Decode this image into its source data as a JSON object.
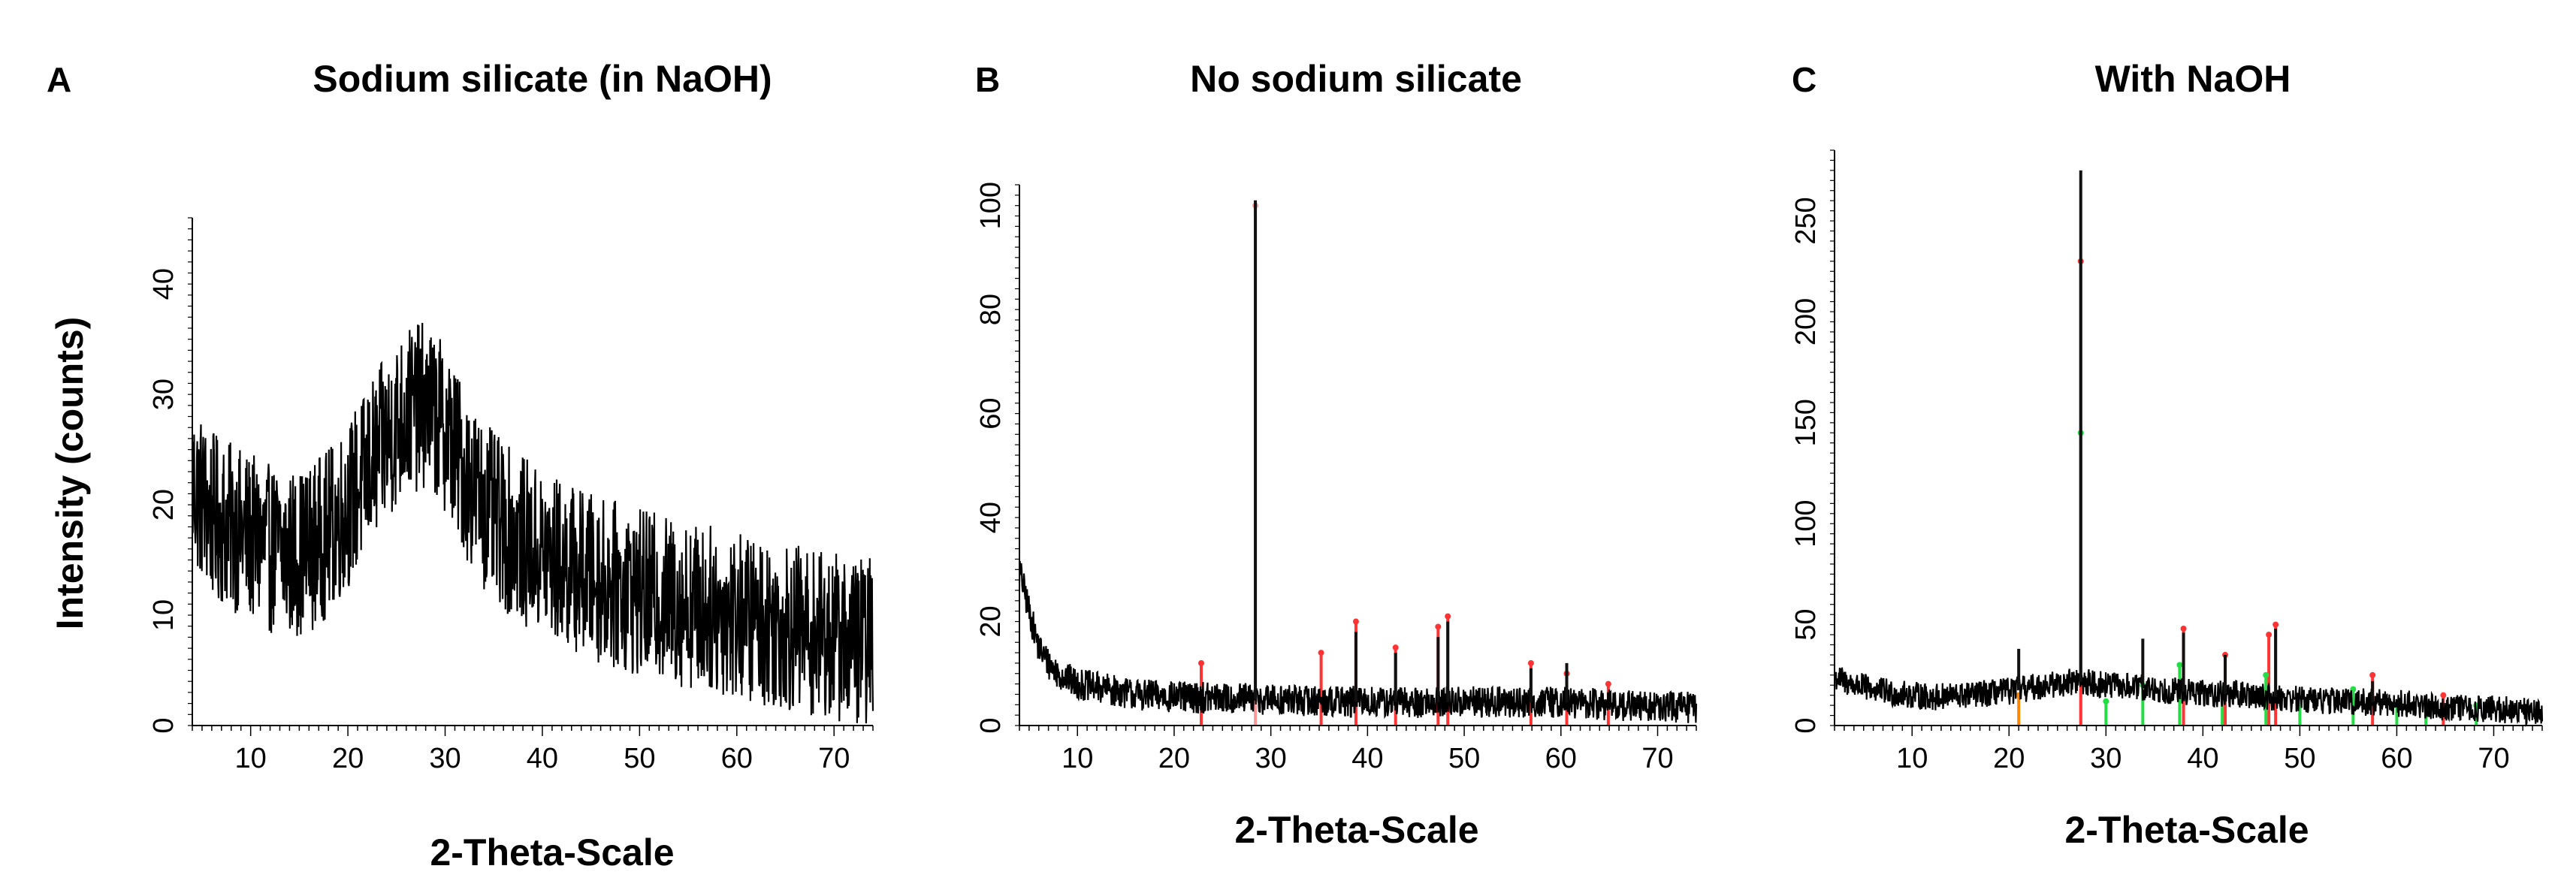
{
  "figure": {
    "panel_letters": [
      "A",
      "B",
      "C"
    ],
    "y_axis_title": "Intensity (counts)"
  },
  "chart_data": [
    {
      "type": "line",
      "panel": "A",
      "title": "Sodium silicate (in NaOH)",
      "xlabel": "2-Theta-Scale",
      "ylabel": "Intensity (counts)",
      "xlim": [
        4,
        74
      ],
      "ylim": [
        0,
        46
      ],
      "xticks": [
        10,
        20,
        30,
        40,
        50,
        60,
        70
      ],
      "yticks": [
        0,
        10,
        20,
        30,
        40
      ],
      "grid": false,
      "series": [
        {
          "color": "#000000",
          "profile": [
            [
              4,
              22
            ],
            [
              6,
              19
            ],
            [
              8,
              18
            ],
            [
              10,
              17
            ],
            [
              12,
              16
            ],
            [
              14,
              15.5
            ],
            [
              16,
              16
            ],
            [
              18,
              17.5
            ],
            [
              20,
              20
            ],
            [
              22,
              23
            ],
            [
              24,
              26
            ],
            [
              26,
              28.5
            ],
            [
              28,
              29
            ],
            [
              30,
              27
            ],
            [
              32,
              23
            ],
            [
              34,
              20
            ],
            [
              36,
              18
            ],
            [
              40,
              15.5
            ],
            [
              45,
              13.5
            ],
            [
              50,
              12
            ],
            [
              55,
              11
            ],
            [
              60,
              10
            ],
            [
              65,
              9
            ],
            [
              70,
              8
            ],
            [
              74,
              7.5
            ]
          ],
          "noise": 4.5
        }
      ],
      "peaks": []
    },
    {
      "type": "line",
      "panel": "B",
      "title": "No sodium silicate",
      "xlabel": "2-Theta-Scale",
      "ylabel": "",
      "xlim": [
        4,
        74
      ],
      "ylim": [
        0,
        104
      ],
      "xticks": [
        10,
        20,
        30,
        40,
        50,
        60,
        70
      ],
      "yticks": [
        0,
        20,
        40,
        60,
        80,
        100
      ],
      "grid": false,
      "series": [
        {
          "color": "#000000",
          "profile": [
            [
              4,
              30
            ],
            [
              5,
              22
            ],
            [
              6,
              15
            ],
            [
              7,
              12
            ],
            [
              8,
              10
            ],
            [
              10,
              8
            ],
            [
              13,
              7
            ],
            [
              16,
              6
            ],
            [
              20,
              5.5
            ],
            [
              30,
              5
            ],
            [
              40,
              4.5
            ],
            [
              50,
              4.5
            ],
            [
              60,
              4.5
            ],
            [
              70,
              3.5
            ],
            [
              74,
              3.5
            ]
          ],
          "noise": 1.8
        }
      ],
      "peaks": [
        {
          "x": 28.4,
          "y": 100,
          "color": "#ff9999"
        },
        {
          "x": 22.8,
          "y": 12,
          "color": "#ff3333"
        },
        {
          "x": 35.2,
          "y": 14,
          "color": "#ff3333"
        },
        {
          "x": 38.8,
          "y": 20,
          "color": "#ff3333"
        },
        {
          "x": 42.9,
          "y": 15,
          "color": "#ff3333"
        },
        {
          "x": 47.3,
          "y": 19,
          "color": "#ff3333"
        },
        {
          "x": 48.3,
          "y": 21,
          "color": "#ff3333"
        },
        {
          "x": 56.9,
          "y": 12,
          "color": "#ff3333"
        },
        {
          "x": 60.6,
          "y": 10,
          "color": "#ff3333"
        },
        {
          "x": 64.9,
          "y": 8,
          "color": "#ff3333"
        }
      ],
      "spikes": [
        {
          "x": 28.4,
          "y": 101
        },
        {
          "x": 38.8,
          "y": 18
        },
        {
          "x": 42.9,
          "y": 14
        },
        {
          "x": 47.3,
          "y": 17
        },
        {
          "x": 48.3,
          "y": 20
        },
        {
          "x": 56.9,
          "y": 11
        },
        {
          "x": 60.6,
          "y": 12
        }
      ]
    },
    {
      "type": "line",
      "panel": "C",
      "title": "With NaOH",
      "xlabel": "2-Theta-Scale",
      "ylabel": "",
      "xlim": [
        2,
        75
      ],
      "ylim": [
        0,
        285
      ],
      "xticks": [
        10,
        20,
        30,
        40,
        50,
        60,
        70
      ],
      "yticks": [
        0,
        50,
        100,
        150,
        200,
        250
      ],
      "grid": false,
      "series": [
        {
          "color": "#000000",
          "profile": [
            [
              2,
              24
            ],
            [
              4,
              20
            ],
            [
              8,
              16
            ],
            [
              12,
              14
            ],
            [
              16,
              15
            ],
            [
              20,
              17
            ],
            [
              24,
              20
            ],
            [
              27,
              22
            ],
            [
              30,
              20
            ],
            [
              35,
              18
            ],
            [
              40,
              16
            ],
            [
              45,
              15
            ],
            [
              50,
              13
            ],
            [
              55,
              12
            ],
            [
              60,
              11
            ],
            [
              65,
              9
            ],
            [
              70,
              8
            ],
            [
              75,
              7
            ]
          ],
          "noise": 4
        }
      ],
      "peaks": [
        {
          "x": 27.4,
          "y": 145,
          "color": "#22dd44"
        },
        {
          "x": 27.4,
          "y": 230,
          "color": "#ff3333"
        },
        {
          "x": 21.0,
          "y": 15,
          "color": "#ff8800"
        },
        {
          "x": 30.0,
          "y": 12,
          "color": "#22dd44"
        },
        {
          "x": 33.8,
          "y": 20,
          "color": "#22dd44"
        },
        {
          "x": 38.0,
          "y": 48,
          "color": "#ff3333"
        },
        {
          "x": 37.6,
          "y": 30,
          "color": "#22dd44"
        },
        {
          "x": 42.3,
          "y": 35,
          "color": "#ff3333"
        },
        {
          "x": 42.0,
          "y": 18,
          "color": "#22dd44"
        },
        {
          "x": 46.8,
          "y": 45,
          "color": "#ff3333"
        },
        {
          "x": 47.5,
          "y": 50,
          "color": "#ff3333"
        },
        {
          "x": 46.5,
          "y": 25,
          "color": "#22dd44"
        },
        {
          "x": 50.0,
          "y": 12,
          "color": "#22dd44"
        },
        {
          "x": 55.5,
          "y": 18,
          "color": "#22dd44"
        },
        {
          "x": 57.5,
          "y": 25,
          "color": "#ff3333"
        },
        {
          "x": 60.0,
          "y": 10,
          "color": "#22dd44"
        },
        {
          "x": 63.0,
          "y": 12,
          "color": "#22dd44"
        },
        {
          "x": 64.8,
          "y": 15,
          "color": "#ff3333"
        },
        {
          "x": 68.2,
          "y": 10,
          "color": "#22dd44"
        }
      ],
      "spikes": [
        {
          "x": 21.0,
          "y": 38
        },
        {
          "x": 27.4,
          "y": 275
        },
        {
          "x": 33.8,
          "y": 43
        },
        {
          "x": 38.0,
          "y": 46
        },
        {
          "x": 42.3,
          "y": 35
        },
        {
          "x": 47.5,
          "y": 48
        },
        {
          "x": 57.5,
          "y": 22
        }
      ]
    }
  ]
}
